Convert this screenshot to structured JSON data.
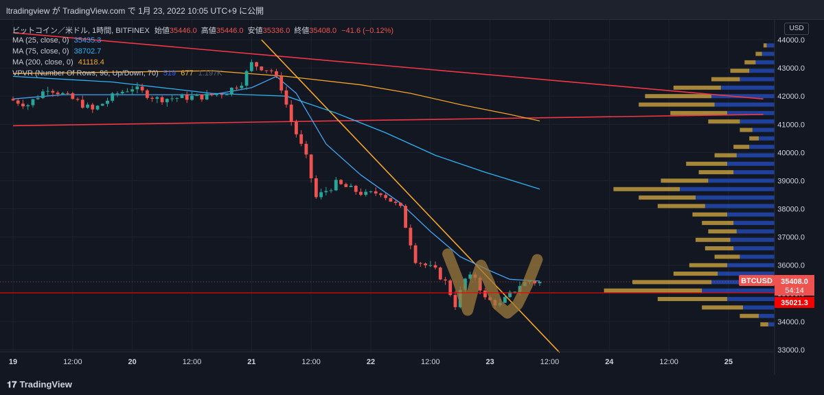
{
  "header": {
    "caption": "ltradingview が TradingView.com で 1月 23, 2022 10:05 UTC+9 に公開"
  },
  "legend": {
    "symbol": "ビットコイン／米ドル, 1時間, BITFINEX",
    "open_label": "始値",
    "open": "35446.0",
    "high_label": "高値",
    "high": "35446.0",
    "low_label": "安値",
    "low": "35336.0",
    "close_label": "終値",
    "close": "35408.0",
    "change": "−41.6 (−0.12%)",
    "ma25_label": "MA (25, close, 0)",
    "ma25": "35435.3",
    "ma75_label": "MA (75, close, 0)",
    "ma75": "38702.7",
    "ma200_label": "MA (200, close, 0)",
    "ma200": "41118.4",
    "vpvr_label": "VPVR (Number Of Rows, 96, Up/Down, 70)",
    "vpvr_up": "519",
    "vpvr_down": "677",
    "vpvr_total": "1.197K"
  },
  "axis": {
    "currency": "USD"
  },
  "price_tags": {
    "symbol": "BTCUSD",
    "last": "35408.0",
    "countdown": "54:14",
    "level": "35021.3"
  },
  "branding": {
    "name": "TradingView"
  },
  "colors": {
    "bg": "#131722",
    "up": "#26a69a",
    "down": "#ef5350",
    "ma25": "#42a5f5",
    "ma75": "#29b6f6",
    "ma200": "#f5a623",
    "trend": "#f7a625",
    "red_line": "#f23645",
    "vpvr_up": "#2962ff",
    "vpvr_down": "#e6b845"
  },
  "chart_data": {
    "type": "candlestick",
    "interval": "1h",
    "ylim": [
      32900,
      44500
    ],
    "y_ticks": [
      33000,
      34000,
      35000,
      36000,
      37000,
      38000,
      39000,
      40000,
      41000,
      42000,
      43000,
      44000
    ],
    "x_ticks": [
      {
        "label": "19",
        "t": 0
      },
      {
        "label": "12:00",
        "t": 12
      },
      {
        "label": "20",
        "t": 24
      },
      {
        "label": "12:00",
        "t": 36
      },
      {
        "label": "21",
        "t": 48
      },
      {
        "label": "12:00",
        "t": 60
      },
      {
        "label": "22",
        "t": 72
      },
      {
        "label": "12:00",
        "t": 84
      },
      {
        "label": "23",
        "t": 96
      },
      {
        "label": "12:00",
        "t": 108
      },
      {
        "label": "24",
        "t": 120
      },
      {
        "label": "12:00",
        "t": 132
      },
      {
        "label": "25",
        "t": 144
      }
    ],
    "keyframes": [
      [
        0,
        41900
      ],
      [
        4,
        41700
      ],
      [
        8,
        42300
      ],
      [
        10,
        42150
      ],
      [
        14,
        41800
      ],
      [
        17,
        41500
      ],
      [
        22,
        42100
      ],
      [
        25,
        42300
      ],
      [
        30,
        41900
      ],
      [
        35,
        41950
      ],
      [
        40,
        42000
      ],
      [
        44,
        42150
      ],
      [
        47,
        42500
      ],
      [
        49,
        43150
      ],
      [
        53,
        42900
      ],
      [
        55,
        42300
      ],
      [
        57,
        41100
      ],
      [
        60,
        39800
      ],
      [
        62,
        38400
      ],
      [
        66,
        38900
      ],
      [
        69,
        38700
      ],
      [
        72,
        38500
      ],
      [
        75,
        38600
      ],
      [
        79,
        38000
      ],
      [
        82,
        36200
      ],
      [
        84,
        36000
      ],
      [
        86,
        35800
      ],
      [
        88,
        35400
      ],
      [
        90,
        34600
      ],
      [
        92,
        35500
      ],
      [
        94,
        35600
      ],
      [
        96,
        34800
      ],
      [
        99,
        34600
      ],
      [
        103,
        35300
      ],
      [
        105,
        35450
      ],
      [
        106,
        35408
      ]
    ],
    "last": 35408.0,
    "level_line": 35021.3,
    "ma25": [
      [
        0,
        41900
      ],
      [
        10,
        42050
      ],
      [
        25,
        42050
      ],
      [
        40,
        42050
      ],
      [
        48,
        42300
      ],
      [
        53,
        42700
      ],
      [
        57,
        42100
      ],
      [
        63,
        40300
      ],
      [
        70,
        39200
      ],
      [
        78,
        38200
      ],
      [
        84,
        37200
      ],
      [
        90,
        36300
      ],
      [
        96,
        35800
      ],
      [
        100,
        35500
      ],
      [
        106,
        35435
      ]
    ],
    "ma75": [
      [
        0,
        42700
      ],
      [
        20,
        42500
      ],
      [
        40,
        42100
      ],
      [
        55,
        42000
      ],
      [
        65,
        41400
      ],
      [
        75,
        40700
      ],
      [
        85,
        39900
      ],
      [
        95,
        39300
      ],
      [
        106,
        38703
      ]
    ],
    "ma200": [
      [
        0,
        42800
      ],
      [
        20,
        42850
      ],
      [
        40,
        42900
      ],
      [
        55,
        42700
      ],
      [
        70,
        42400
      ],
      [
        80,
        42100
      ],
      [
        90,
        41700
      ],
      [
        100,
        41350
      ],
      [
        106,
        41118
      ]
    ],
    "trendlines": [
      {
        "name": "resistance-upper",
        "points": [
          [
            0,
            44250
          ],
          [
            151,
            41900
          ]
        ]
      },
      {
        "name": "support-lower",
        "points": [
          [
            0,
            40950
          ],
          [
            151,
            41350
          ]
        ]
      },
      {
        "name": "descending-trend",
        "points": [
          [
            50,
            44000
          ],
          [
            110,
            32900
          ]
        ]
      }
    ],
    "vpvr": {
      "description": "Volume profile by price; values are relative volume (0-1) per price row",
      "rows": [
        [
          43800,
          0.05,
          0.02
        ],
        [
          43500,
          0.08,
          0.04
        ],
        [
          43200,
          0.12,
          0.07
        ],
        [
          42900,
          0.16,
          0.12
        ],
        [
          42600,
          0.22,
          0.18
        ],
        [
          42300,
          0.34,
          0.3
        ],
        [
          42000,
          0.4,
          0.42
        ],
        [
          41700,
          0.38,
          0.48
        ],
        [
          41400,
          0.3,
          0.36
        ],
        [
          41100,
          0.22,
          0.2
        ],
        [
          40800,
          0.14,
          0.08
        ],
        [
          40500,
          0.1,
          0.06
        ],
        [
          40200,
          0.16,
          0.1
        ],
        [
          39900,
          0.24,
          0.14
        ],
        [
          39600,
          0.3,
          0.26
        ],
        [
          39300,
          0.26,
          0.22
        ],
        [
          39000,
          0.42,
          0.3
        ],
        [
          38700,
          0.6,
          0.42
        ],
        [
          38400,
          0.5,
          0.36
        ],
        [
          38100,
          0.44,
          0.3
        ],
        [
          37800,
          0.3,
          0.22
        ],
        [
          37500,
          0.26,
          0.2
        ],
        [
          37200,
          0.24,
          0.18
        ],
        [
          36900,
          0.28,
          0.22
        ],
        [
          36600,
          0.26,
          0.18
        ],
        [
          36300,
          0.22,
          0.16
        ],
        [
          36000,
          0.3,
          0.24
        ],
        [
          35700,
          0.36,
          0.28
        ],
        [
          35400,
          0.4,
          0.5
        ],
        [
          35100,
          0.46,
          0.62
        ],
        [
          34800,
          0.3,
          0.44
        ],
        [
          34500,
          0.2,
          0.26
        ],
        [
          34200,
          0.1,
          0.12
        ],
        [
          33900,
          0.04,
          0.05
        ]
      ]
    }
  }
}
